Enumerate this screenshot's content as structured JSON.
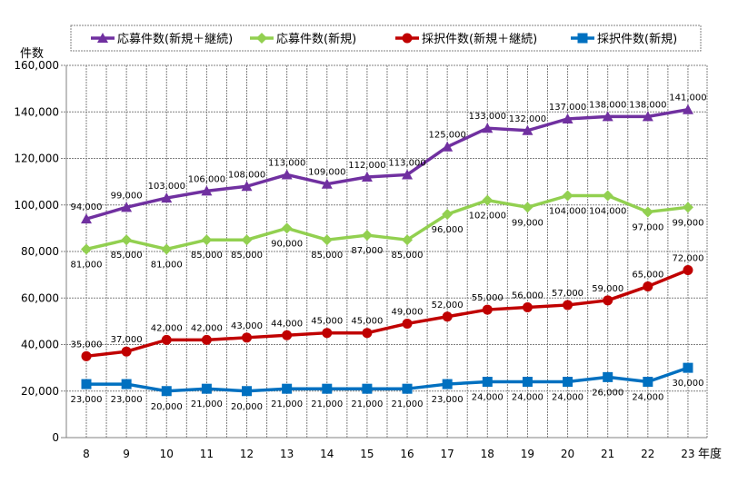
{
  "chart_data": {
    "type": "line",
    "title": "",
    "xlabel": "年度",
    "ylabel": "件数",
    "categories": [
      "8",
      "9",
      "10",
      "11",
      "12",
      "13",
      "14",
      "15",
      "16",
      "17",
      "18",
      "19",
      "20",
      "21",
      "22",
      "23"
    ],
    "ylim": [
      0,
      160000
    ],
    "yticks": [
      0,
      20000,
      40000,
      60000,
      80000,
      100000,
      120000,
      140000,
      160000
    ],
    "ytick_labels": [
      "0",
      "20,000",
      "40,000",
      "60,000",
      "80,000",
      "100,000",
      "120,000",
      "140,000",
      "160,000"
    ],
    "grid": true,
    "legend_position": "top",
    "series": [
      {
        "name": "応募件数(新規＋継続)",
        "color": "#7030A0",
        "marker": "triangle",
        "label_position": "above",
        "values": [
          94000,
          99000,
          103000,
          106000,
          108000,
          113000,
          109000,
          112000,
          113000,
          125000,
          133000,
          132000,
          137000,
          138000,
          138000,
          141000
        ],
        "labels": [
          "94,000",
          "99,000",
          "103,000",
          "106,000",
          "108,000",
          "113,000",
          "109,000",
          "112,000",
          "113,000",
          "125,000",
          "133,000",
          "132,000",
          "137,000",
          "138,000",
          "138,000",
          "141,000"
        ]
      },
      {
        "name": "応募件数(新規)",
        "color": "#92D050",
        "marker": "diamond",
        "label_position": "below",
        "values": [
          81000,
          85000,
          81000,
          85000,
          85000,
          90000,
          85000,
          87000,
          85000,
          96000,
          102000,
          99000,
          104000,
          104000,
          97000,
          99000
        ],
        "labels": [
          "81,000",
          "85,000",
          "81,000",
          "85,000",
          "85,000",
          "90,000",
          "85,000",
          "87,000",
          "85,000",
          "96,000",
          "102,000",
          "99,000",
          "104,000",
          "104,000",
          "97,000",
          "99,000"
        ]
      },
      {
        "name": "採択件数(新規＋継続)",
        "color": "#C00000",
        "marker": "circle",
        "label_position": "above",
        "values": [
          35000,
          37000,
          42000,
          42000,
          43000,
          44000,
          45000,
          45000,
          49000,
          52000,
          55000,
          56000,
          57000,
          59000,
          65000,
          72000
        ],
        "labels": [
          "35,000",
          "37,000",
          "42,000",
          "42,000",
          "43,000",
          "44,000",
          "45,000",
          "45,000",
          "49,000",
          "52,000",
          "55,000",
          "56,000",
          "57,000",
          "59,000",
          "65,000",
          "72,000"
        ]
      },
      {
        "name": "採択件数(新規)",
        "color": "#0070C0",
        "marker": "square",
        "label_position": "below",
        "values": [
          23000,
          23000,
          20000,
          21000,
          20000,
          21000,
          21000,
          21000,
          21000,
          23000,
          24000,
          24000,
          24000,
          26000,
          24000,
          30000
        ],
        "labels": [
          "23,000",
          "23,000",
          "20,000",
          "21,000",
          "20,000",
          "21,000",
          "21,000",
          "21,000",
          "21,000",
          "23,000",
          "24,000",
          "24,000",
          "24,000",
          "26,000",
          "24,000",
          "30,000"
        ]
      }
    ]
  }
}
